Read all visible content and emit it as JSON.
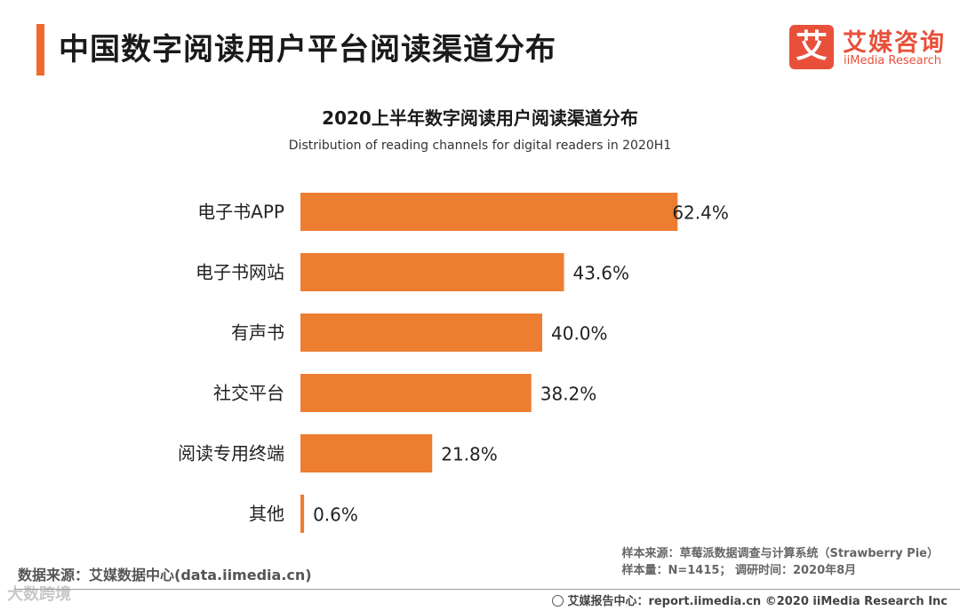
{
  "header": {
    "title": "中国数字阅读用户平台阅读渠道分布",
    "accent_color": "#f0692c"
  },
  "logo": {
    "mark": "艾",
    "name_cn": "艾媒咨询",
    "name_en": "iiMedia Research"
  },
  "chart_data": {
    "type": "bar",
    "orientation": "horizontal",
    "title": "2020上半年数字阅读用户阅读渠道分布",
    "subtitle": "Distribution of reading channels for digital readers in 2020H1",
    "categories": [
      "电子书APP",
      "电子书网站",
      "有声书",
      "社交平台",
      "阅读专用终端",
      "其他"
    ],
    "values": [
      62.4,
      43.6,
      40.0,
      38.2,
      21.8,
      0.6
    ],
    "labels": [
      "62.4%",
      "43.6%",
      "40.0%",
      "38.2%",
      "21.8%",
      "0.6%"
    ],
    "unit": "%",
    "xlim": [
      0,
      70
    ],
    "bar_color": "#ed7d31",
    "grid": false,
    "legend": "none"
  },
  "footer": {
    "data_source": "数据来源：艾媒数据中心(data.iimedia.cn)",
    "sample_source": "样本来源：草莓派数据调查与计算系统（Strawberry Pie）",
    "sample_size": "样本量：N=1415；  调研时间：2020年8月",
    "credit": "艾媒报告中心：report.iimedia.cn   ©2020  iiMedia Research  Inc",
    "watermark": "大数跨境"
  }
}
